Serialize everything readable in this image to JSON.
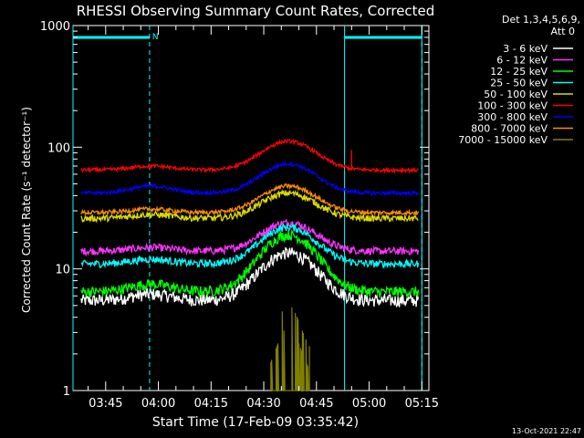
{
  "chart_data": {
    "type": "line",
    "title": "RHESSI Observing Summary Count Rates, Corrected",
    "xlabel": "Start Time (17-Feb-09 03:35:42)",
    "ylabel": "Corrected Count Rate (s⁻¹ detector⁻¹)",
    "y_scale": "log",
    "ylim": [
      1,
      1000
    ],
    "xlim": [
      "03:35:42",
      "05:17:00"
    ],
    "x_ticks": [
      "03:45",
      "04:00",
      "04:15",
      "04:30",
      "04:45",
      "05:00",
      "05:15"
    ],
    "y_ticks": [
      "1",
      "10",
      "100",
      "1000"
    ],
    "grid": false,
    "legend_title_lines": [
      "Det 1,3,4,5,6,9,",
      "Att 0"
    ],
    "legend_position": "top-right",
    "timestamp": "13-Oct-2021 22:47",
    "night_markers": [
      "03:35:42",
      "05:15:00"
    ],
    "saa_marker_text": "N",
    "eclipse_intervals": [
      [
        "03:35:42",
        "03:57:30"
      ],
      [
        "04:53:00",
        "05:15:00"
      ]
    ],
    "series": [
      {
        "name": "3 - 6 keV",
        "color": "#ffffff",
        "base": 5.5,
        "peak": 13.5,
        "bump": 6.2,
        "noise": 0.12
      },
      {
        "name": "6 - 12 keV",
        "color": "#ff33ff",
        "base": 14,
        "peak": 24,
        "bump": 15,
        "noise": 0.07
      },
      {
        "name": "12 - 25 keV",
        "color": "#00ff00",
        "base": 6.5,
        "peak": 19,
        "bump": 7.5,
        "noise": 0.1
      },
      {
        "name": "25 - 50 keV",
        "color": "#00ffff",
        "base": 11,
        "peak": 22,
        "bump": 12,
        "noise": 0.07
      },
      {
        "name": "50 - 100 keV",
        "color": "#dddd00",
        "base": 26,
        "peak": 42,
        "bump": 28,
        "noise": 0.06
      },
      {
        "name": "100 - 300 keV",
        "color": "#ff0000",
        "base": 65,
        "peak": 112,
        "bump": 70,
        "noise": 0.035
      },
      {
        "name": "300 - 800 keV",
        "color": "#0000ff",
        "base": 42,
        "peak": 73,
        "bump": 48,
        "noise": 0.035
      },
      {
        "name": "800 - 7000 keV",
        "color": "#ff8c00",
        "base": 29,
        "peak": 48,
        "bump": 31,
        "noise": 0.04
      },
      {
        "name": "7000 - 15000 keV",
        "color": "#808000",
        "base": 1,
        "peak": 6,
        "bump": 1,
        "noise": 0.0
      }
    ]
  }
}
